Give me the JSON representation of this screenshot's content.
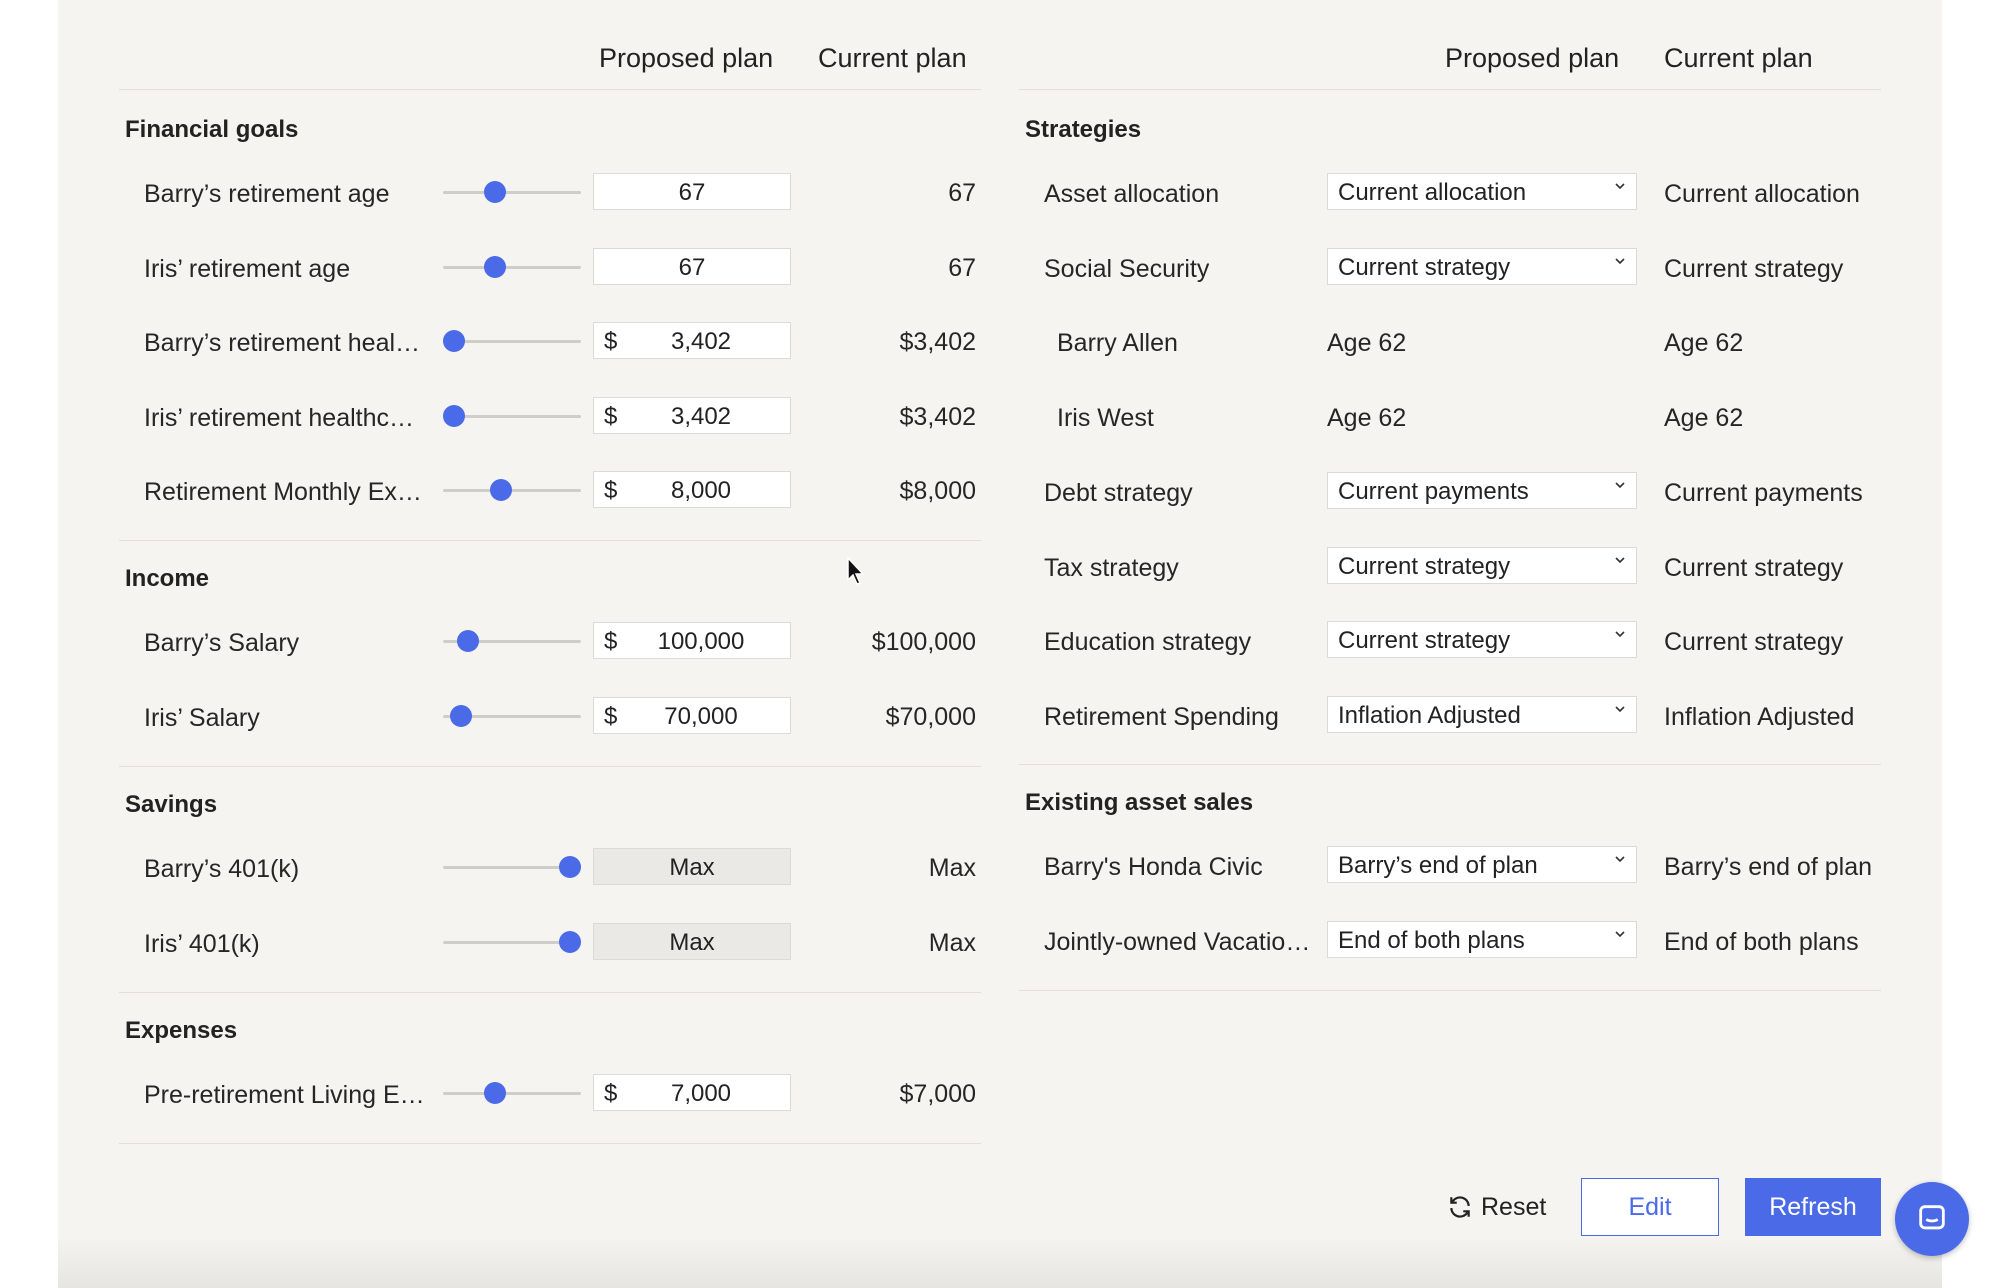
{
  "left": {
    "header": {
      "proposed": "Proposed plan",
      "current": "Current plan"
    },
    "financial_goals": {
      "title": "Financial goals",
      "rows": [
        {
          "label": "Barry’s retirement age",
          "slider": 0.38,
          "value": "67",
          "current": "67"
        },
        {
          "label": "Iris’ retirement age",
          "slider": 0.38,
          "value": "67",
          "current": "67"
        },
        {
          "label": "Barry’s retirement heal…",
          "slider": 0.08,
          "currency": "$",
          "value": "3,402",
          "current": "$3,402"
        },
        {
          "label": "Iris’ retirement healthc…",
          "slider": 0.08,
          "currency": "$",
          "value": "3,402",
          "current": "$3,402"
        },
        {
          "label": "Retirement Monthly Ex…",
          "slider": 0.42,
          "currency": "$",
          "value": "8,000",
          "current": "$8,000"
        }
      ]
    },
    "income": {
      "title": "Income",
      "rows": [
        {
          "label": "Barry’s Salary",
          "slider": 0.18,
          "currency": "$",
          "value": "100,000",
          "current": "$100,000"
        },
        {
          "label": "Iris’ Salary",
          "slider": 0.13,
          "currency": "$",
          "value": "70,000",
          "current": "$70,000"
        }
      ]
    },
    "savings": {
      "title": "Savings",
      "rows": [
        {
          "label": "Barry’s 401(k)",
          "slider": 0.92,
          "value": "Max",
          "current": "Max"
        },
        {
          "label": "Iris’ 401(k)",
          "slider": 0.92,
          "value": "Max",
          "current": "Max"
        }
      ]
    },
    "expenses": {
      "title": "Expenses",
      "rows": [
        {
          "label": "Pre-retirement Living E…",
          "slider": 0.38,
          "currency": "$",
          "value": "7,000",
          "current": "$7,000"
        }
      ]
    }
  },
  "right": {
    "header": {
      "proposed": "Proposed plan",
      "current": "Current plan"
    },
    "strategies": {
      "title": "Strategies",
      "rows": [
        {
          "label": "Asset allocation",
          "select": "Current allocation",
          "current": "Current allocation"
        },
        {
          "label": "Social Security",
          "select": "Current strategy",
          "current": "Current strategy"
        },
        {
          "label": "Barry Allen",
          "static": "Age 62",
          "current": "Age 62"
        },
        {
          "label": "Iris West",
          "static": "Age 62",
          "current": "Age 62"
        },
        {
          "label": "Debt strategy",
          "select": "Current payments",
          "current": "Current payments"
        },
        {
          "label": "Tax strategy",
          "select": "Current strategy",
          "current": "Current strategy"
        },
        {
          "label": "Education strategy",
          "select": "Current strategy",
          "current": "Current strategy"
        },
        {
          "label": "Retirement Spending",
          "select": "Inflation Adjusted",
          "current": "Inflation Adjusted"
        }
      ]
    },
    "asset_sales": {
      "title": "Existing asset sales",
      "rows": [
        {
          "label": "Barry's Honda Civic",
          "select": "Barry’s end of plan",
          "current": "Barry’s end of plan"
        },
        {
          "label": "Jointly-owned Vacatio…",
          "select": "End of both plans",
          "current": "End of both plans"
        }
      ]
    }
  },
  "footer": {
    "reset_label": "Reset",
    "edit_label": "Edit",
    "refresh_label": "Refresh",
    "reset_icon": "refresh-icon",
    "chat_icon": "chat-icon"
  },
  "colors": {
    "accent": "#4a6ae8",
    "panel": "#f6f4f0"
  }
}
